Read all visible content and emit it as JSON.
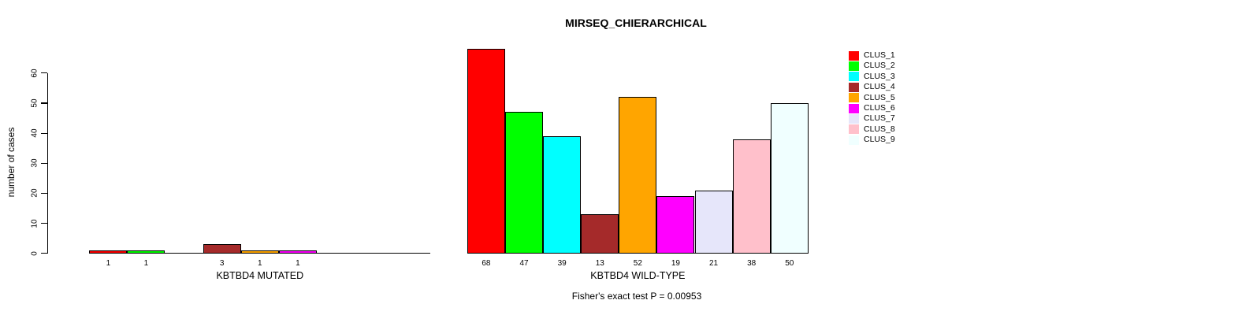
{
  "title": "MIRSEQ_CHIERARCHICAL",
  "chart_data": {
    "type": "bar",
    "title": "MIRSEQ_CHIERARCHICAL",
    "xlabel": "",
    "ylabel": "number of cases",
    "ylim": [
      0,
      60
    ],
    "yticks": [
      0,
      10,
      20,
      30,
      40,
      50,
      60
    ],
    "grid": false,
    "legend_position": "right-outside",
    "categories": [
      "CLUS_1",
      "CLUS_2",
      "CLUS_3",
      "CLUS_4",
      "CLUS_5",
      "CLUS_6",
      "CLUS_7",
      "CLUS_8",
      "CLUS_9"
    ],
    "colors": [
      "#FF0000",
      "#00FF00",
      "#00FFFF",
      "#A52A2A",
      "#FFA500",
      "#FF00FF",
      "#E6E6FA",
      "#FFC0CB",
      "#F0FFFF"
    ],
    "groups": [
      {
        "label": "KBTBD4 MUTATED",
        "values": [
          1,
          1,
          0,
          3,
          1,
          1,
          0,
          0,
          0
        ],
        "bar_labels": [
          "1",
          "1",
          "",
          "3",
          "1",
          "1",
          "",
          "",
          ""
        ]
      },
      {
        "label": "KBTBD4 WILD-TYPE",
        "values": [
          68,
          47,
          39,
          13,
          52,
          19,
          21,
          38,
          50
        ],
        "bar_labels": [
          "68",
          "47",
          "39",
          "13",
          "52",
          "19",
          "21",
          "38",
          "50"
        ]
      }
    ],
    "annotation": "Fisher's exact test P = 0.00953"
  }
}
